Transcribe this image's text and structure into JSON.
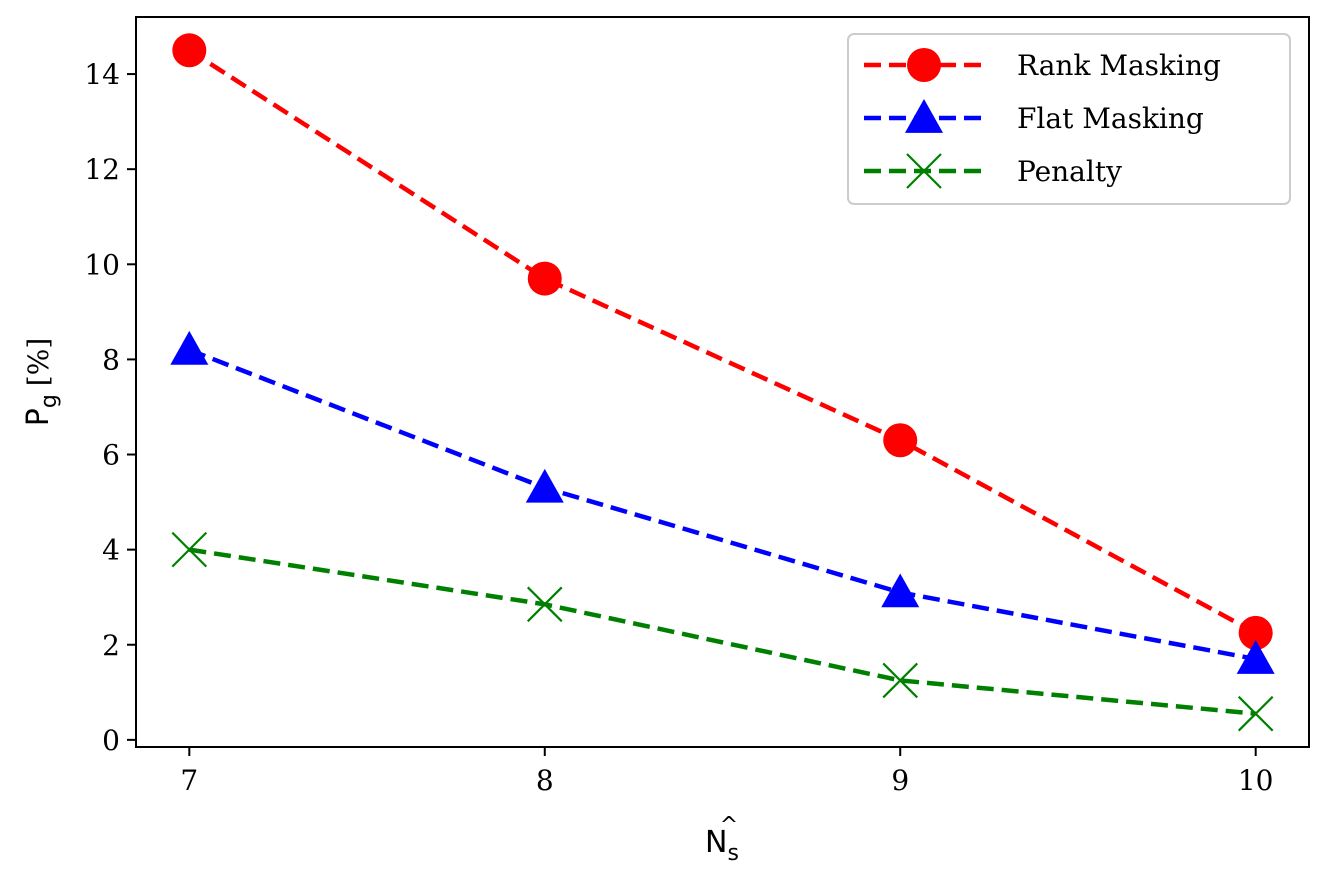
{
  "chart_data": {
    "type": "line",
    "x": [
      7,
      8,
      9,
      10
    ],
    "xlim": [
      6.85,
      10.15
    ],
    "ylim": [
      -0.15,
      15.2
    ],
    "x_ticks": [
      "7",
      "8",
      "9",
      "10"
    ],
    "y_ticks": [
      "0",
      "2",
      "4",
      "6",
      "8",
      "10",
      "12",
      "14"
    ],
    "xlabel": {
      "base": "N",
      "hat": "^",
      "sub": "s"
    },
    "ylabel": {
      "base": "P",
      "sub": "g",
      "unit": "[%]"
    },
    "grid": false,
    "legend_position": "top-right",
    "series": [
      {
        "name": "Rank Masking",
        "color": "#ff0000",
        "marker": "circle",
        "line_style": "dashed",
        "values": [
          14.5,
          9.7,
          6.3,
          2.25
        ]
      },
      {
        "name": "Flat Masking",
        "color": "#0000ff",
        "marker": "triangle",
        "line_style": "dashed",
        "values": [
          8.2,
          5.3,
          3.1,
          1.7
        ]
      },
      {
        "name": "Penalty",
        "color": "#008000",
        "marker": "x",
        "line_style": "dashed",
        "values": [
          4.0,
          2.85,
          1.25,
          0.55
        ]
      }
    ]
  }
}
